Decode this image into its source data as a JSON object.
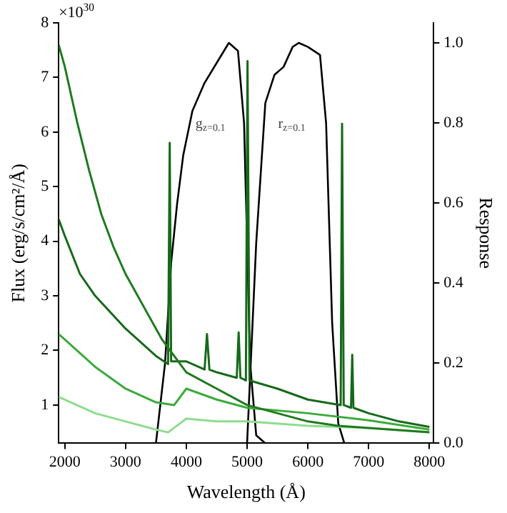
{
  "chart_data": {
    "type": "line",
    "xlabel": "Wavelength (Å)",
    "ylabel": "Flux (erg/s/cm²/Å)",
    "y2label": "Response",
    "annotations": [
      "×10$^{30}$",
      "g$_{z=0.1}$",
      "r$_{z=0.1}$"
    ],
    "xlim": [
      1900,
      8070
    ],
    "xticks": [
      2000,
      3000,
      4000,
      5000,
      6000,
      7000,
      8000
    ],
    "ylim": [
      0.3,
      8
    ],
    "yticks": [
      1,
      2,
      3,
      4,
      5,
      6,
      7,
      8
    ],
    "y2lim": [
      0,
      1.05
    ],
    "y2ticks": [
      {
        "value": 0,
        "label": "0.0"
      },
      0.2,
      0.4,
      0.6,
      0.8,
      {
        "value": 1,
        "label": "1.0"
      }
    ],
    "grid": false,
    "legend": false,
    "series": [
      {
        "color": "#1f7a1f",
        "x": [
          1900,
          2000,
          2200,
          2400,
          2600,
          2800,
          3000,
          3300,
          3600,
          3800,
          4000,
          4500,
          5000,
          5500,
          6000,
          6500,
          7000,
          7500,
          8000
        ],
        "values": [
          7.6,
          7.2,
          6.2,
          5.3,
          4.5,
          3.9,
          3.4,
          2.8,
          2.2,
          1.9,
          1.6,
          1.3,
          1.0,
          0.85,
          0.7,
          0.62,
          0.58,
          0.54,
          0.5
        ]
      },
      {
        "color": "#17691a",
        "x": [
          1900,
          2000,
          2250,
          2500,
          3000,
          3500,
          3700,
          3727,
          3750,
          4000,
          4300,
          4340,
          4380,
          4500,
          4830,
          4861,
          4890,
          4980,
          5007,
          5040,
          5500,
          6000,
          6540,
          6563,
          6590,
          6710,
          6730,
          6750,
          7000,
          7500,
          8000
        ],
        "values": [
          4.4,
          4.1,
          3.4,
          3.0,
          2.4,
          1.9,
          1.75,
          5.8,
          1.8,
          1.8,
          1.65,
          2.3,
          1.65,
          1.6,
          1.5,
          2.33,
          1.5,
          1.45,
          7.3,
          1.45,
          1.3,
          1.1,
          1.0,
          6.15,
          1.0,
          0.95,
          1.92,
          0.95,
          0.85,
          0.7,
          0.6
        ]
      },
      {
        "color": "#3caa3c",
        "x": [
          1900,
          2000,
          2500,
          3000,
          3500,
          3800,
          4000,
          4500,
          5000,
          6000,
          7000,
          8000
        ],
        "values": [
          2.3,
          2.2,
          1.7,
          1.3,
          1.05,
          1.0,
          1.3,
          1.1,
          0.95,
          0.85,
          0.72,
          0.55
        ]
      },
      {
        "color": "#8fdc8f",
        "x": [
          1900,
          2000,
          2500,
          3000,
          3500,
          3700,
          4000,
          4500,
          5000,
          6000,
          7000,
          8000
        ],
        "values": [
          1.15,
          1.1,
          0.85,
          0.7,
          0.55,
          0.5,
          0.75,
          0.7,
          0.7,
          0.62,
          0.58,
          0.5
        ]
      },
      {
        "color": "#000000",
        "axis": "y2",
        "x": [
          3500,
          3650,
          3750,
          3850,
          3950,
          4100,
          4300,
          4500,
          4700,
          4850,
          4950,
          5050,
          5150,
          5300
        ],
        "values": [
          0,
          0.2,
          0.45,
          0.6,
          0.72,
          0.83,
          0.9,
          0.95,
          1.0,
          0.98,
          0.8,
          0.2,
          0.02,
          0
        ]
      },
      {
        "color": "#000000",
        "axis": "y2",
        "x": [
          5000,
          5150,
          5300,
          5450,
          5600,
          5750,
          5850,
          6000,
          6200,
          6300,
          6400,
          6500,
          6600
        ],
        "values": [
          0,
          0.5,
          0.85,
          0.92,
          0.94,
          0.99,
          1.0,
          0.99,
          0.97,
          0.8,
          0.3,
          0.05,
          0
        ]
      }
    ]
  }
}
